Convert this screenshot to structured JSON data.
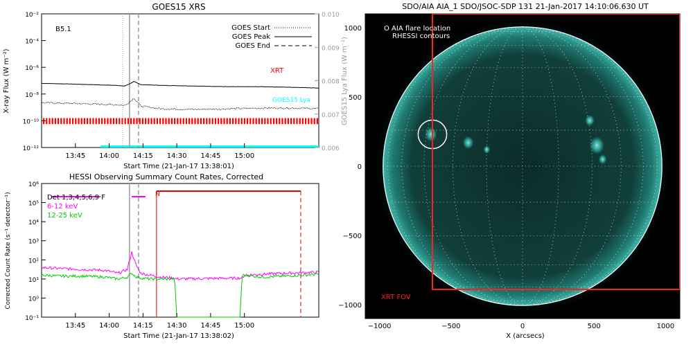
{
  "chart_data": [
    {
      "type": "line",
      "title": "GOES15 XRS",
      "annotation": "B5.1",
      "xlabel": "Start Time (21-Jan-17 13:38:01)",
      "ylabel": "X-ray Flux (W m⁻²)",
      "ylabel_right": "GOES15 Lya Flux (W m⁻²)",
      "x_ticks": [
        "13:45",
        "14:00",
        "14:15",
        "14:30",
        "14:45",
        "15:00"
      ],
      "x_range_min": [
        -8,
        115
      ],
      "y_scale": "log",
      "y_ticks": [
        "10⁻¹²",
        "10⁻¹⁰",
        "10⁻⁸",
        "10⁻⁶",
        "10⁻⁴",
        "10⁻²"
      ],
      "y_ticks_right": [
        "0.006",
        "0.007",
        "0.008",
        "0.009",
        "0.010"
      ],
      "legend": [
        {
          "label": "GOES Start",
          "style": "dotted"
        },
        {
          "label": "GOES Peak",
          "style": "solid"
        },
        {
          "label": "GOES End",
          "style": "dashed"
        }
      ],
      "event_lines_min": {
        "start": 28,
        "peak": 31,
        "end": 35
      },
      "labels": {
        "xrt": "XRT",
        "lya": "GOES15 Lya"
      },
      "series": [
        {
          "name": "XRT",
          "color": "#000000",
          "t": [
            -8,
            5,
            15,
            25,
            29,
            31,
            33,
            36,
            45,
            60,
            75,
            90,
            105,
            115
          ],
          "logy": [
            -7.2,
            -7.25,
            -7.3,
            -7.35,
            -7.4,
            -7.25,
            -7.05,
            -7.3,
            -7.35,
            -7.4,
            -7.45,
            -7.45,
            -7.5,
            -7.55
          ]
        },
        {
          "name": "low",
          "color": "#000000",
          "t": [
            -8,
            5,
            15,
            25,
            29,
            31,
            33,
            36,
            45,
            60,
            75,
            90,
            105,
            115
          ],
          "logy": [
            -8.65,
            -8.7,
            -8.75,
            -8.8,
            -8.85,
            -8.6,
            -8.3,
            -8.9,
            -9.1,
            -9.15,
            -9.1,
            -9.05,
            -9.05,
            -9.1
          ]
        }
      ],
      "colors": {
        "xrt_label": "#ff0000",
        "lya": "#00ffff",
        "bars": "#ff0000",
        "event_lines": "#9b9b9b",
        "axes": "#000000",
        "right_axis": "#9b9b9b"
      }
    },
    {
      "type": "line",
      "title": "HESSI Observing Summary Count Rates, Corrected",
      "xlabel": "Start Time (21-Jan-17 13:38:02)",
      "ylabel": "Corrected Count Rate (s⁻¹ detector⁻¹)",
      "x_ticks": [
        "13:45",
        "14:00",
        "14:15",
        "14:30",
        "14:45",
        "15:00"
      ],
      "y_scale": "log",
      "y_ticks": [
        "10⁻¹",
        "10⁰",
        "10¹",
        "10²",
        "10³",
        "10⁴",
        "10⁵",
        "10⁶"
      ],
      "legend": [
        {
          "label": "Det 1,3,4,5,6,9 F",
          "color": "#000000"
        },
        {
          "label": "6-12 keV",
          "color": "#ff00ff"
        },
        {
          "label": "12-25 keV",
          "color": "#00cc00"
        }
      ],
      "night_label": "N",
      "night_min": [
        43,
        107
      ],
      "series": [
        {
          "name": "6-12 keV",
          "color": "#ff00ff",
          "t": [
            -8,
            0,
            10,
            20,
            26,
            30,
            32,
            34,
            36,
            40,
            45,
            50,
            52,
            81,
            82,
            90,
            100,
            115
          ],
          "logy": [
            1.6,
            1.55,
            1.5,
            1.45,
            1.3,
            1.5,
            2.4,
            1.7,
            1.3,
            1.2,
            1.1,
            1.05,
            1.0,
            1.05,
            1.2,
            1.25,
            1.3,
            1.35
          ]
        },
        {
          "name": "12-25 keV",
          "color": "#00cc00",
          "t": [
            -8,
            0,
            10,
            20,
            26,
            30,
            32,
            34,
            36,
            40,
            45,
            50,
            51,
            52,
            80,
            81,
            82,
            90,
            100,
            115
          ],
          "logy": [
            1.2,
            1.15,
            1.15,
            1.1,
            1.0,
            1.1,
            1.3,
            1.1,
            1.05,
            1.0,
            1.0,
            1.0,
            1.05,
            -1,
            -1,
            1.2,
            1.2,
            1.1,
            1.15,
            1.25
          ]
        }
      ],
      "colors": {
        "night": "#dd0000",
        "event_lines": "#9b9b9b",
        "attenuator": "#ff00ff"
      }
    },
    {
      "type": "heatmap",
      "title": "SDO/AIA AIA_1 SDO/JSOC-SDP 131 21-Jan-2017 14:10:06.630 UT",
      "xlabel": "X (arcsecs)",
      "ylabel": "",
      "x_ticks": [
        "−1000",
        "−500",
        "0",
        "500",
        "1000"
      ],
      "y_ticks": [
        "−1000",
        "−500",
        "0",
        "500",
        "1000"
      ],
      "x_range": [
        -1100,
        1100
      ],
      "y_range": [
        -1100,
        1100
      ],
      "legend": [
        "O AIA flare location",
        "RHESSI contours"
      ],
      "fov_label": "XRT FOV",
      "solar_radius": 975,
      "flare": {
        "x": -630,
        "y": 230,
        "r": 100
      },
      "fov": {
        "x0": -630,
        "x1": 1100,
        "y0": -890,
        "y1": 1100
      },
      "colors": {
        "background": "#000000",
        "disk": "#0f3a36",
        "glow": "#1f8a80",
        "limb": "#ffffff",
        "fov": "#ff2020",
        "active": "#3fd1c2"
      }
    }
  ]
}
